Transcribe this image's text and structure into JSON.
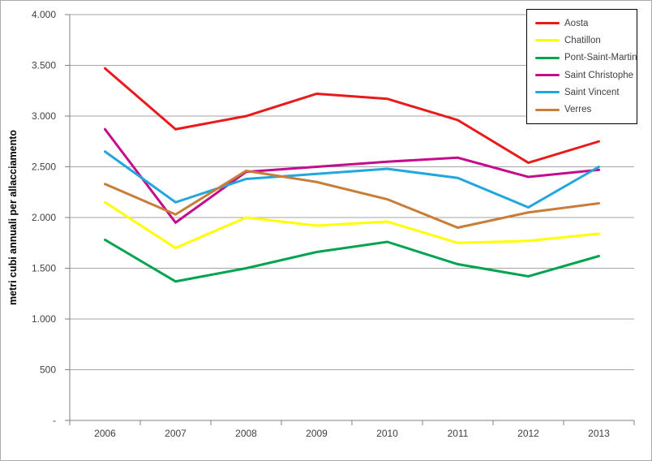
{
  "window": {
    "background": "#ffffff",
    "frame_border": "#ababab"
  },
  "chart_data": {
    "type": "line",
    "title": "",
    "xlabel": "",
    "ylabel": "metri cubi annuali per allacciamento",
    "categories": [
      "2006",
      "2007",
      "2008",
      "2009",
      "2010",
      "2011",
      "2012",
      "2013"
    ],
    "series": [
      {
        "name": "Aosta",
        "color": "#e81a1a",
        "values": [
          3470,
          2870,
          3000,
          3220,
          3170,
          2960,
          2540,
          2750
        ]
      },
      {
        "name": "Chatillon",
        "color": "#ffff00",
        "values": [
          2150,
          1700,
          2000,
          1920,
          1960,
          1750,
          1770,
          1840
        ]
      },
      {
        "name": "Pont-Saint-Martin",
        "color": "#00a350",
        "values": [
          1780,
          1370,
          1500,
          1660,
          1760,
          1540,
          1420,
          1620
        ]
      },
      {
        "name": "Saint Christophe",
        "color": "#c30d8c",
        "values": [
          2870,
          1950,
          2450,
          2500,
          2550,
          2590,
          2400,
          2470
        ]
      },
      {
        "name": "Saint Vincent",
        "color": "#21a7de",
        "values": [
          2650,
          2150,
          2380,
          2430,
          2480,
          2390,
          2100,
          2500
        ]
      },
      {
        "name": "Verres",
        "color": "#c87d38",
        "values": [
          2330,
          2030,
          2460,
          2350,
          2180,
          1900,
          2050,
          2140
        ]
      }
    ],
    "ylim": [
      0,
      4000
    ],
    "y_ticks": [
      {
        "value": 4000,
        "label": "4.000"
      },
      {
        "value": 3500,
        "label": "3.500"
      },
      {
        "value": 3000,
        "label": "3.000"
      },
      {
        "value": 2500,
        "label": "2.500"
      },
      {
        "value": 2000,
        "label": "2.000"
      },
      {
        "value": 1500,
        "label": "1.500"
      },
      {
        "value": 1000,
        "label": "1.000"
      },
      {
        "value": 500,
        "label": "500"
      },
      {
        "value": 0,
        "label": "-"
      }
    ],
    "grid": true,
    "legend_position": "top-right",
    "colors": {
      "gridline": "#a6a6a6",
      "axis": "#808080",
      "tick_text": "#3f3f46",
      "axis_title_text": "#000000",
      "legend_border": "#000000",
      "legend_background": "#ffffff"
    }
  }
}
